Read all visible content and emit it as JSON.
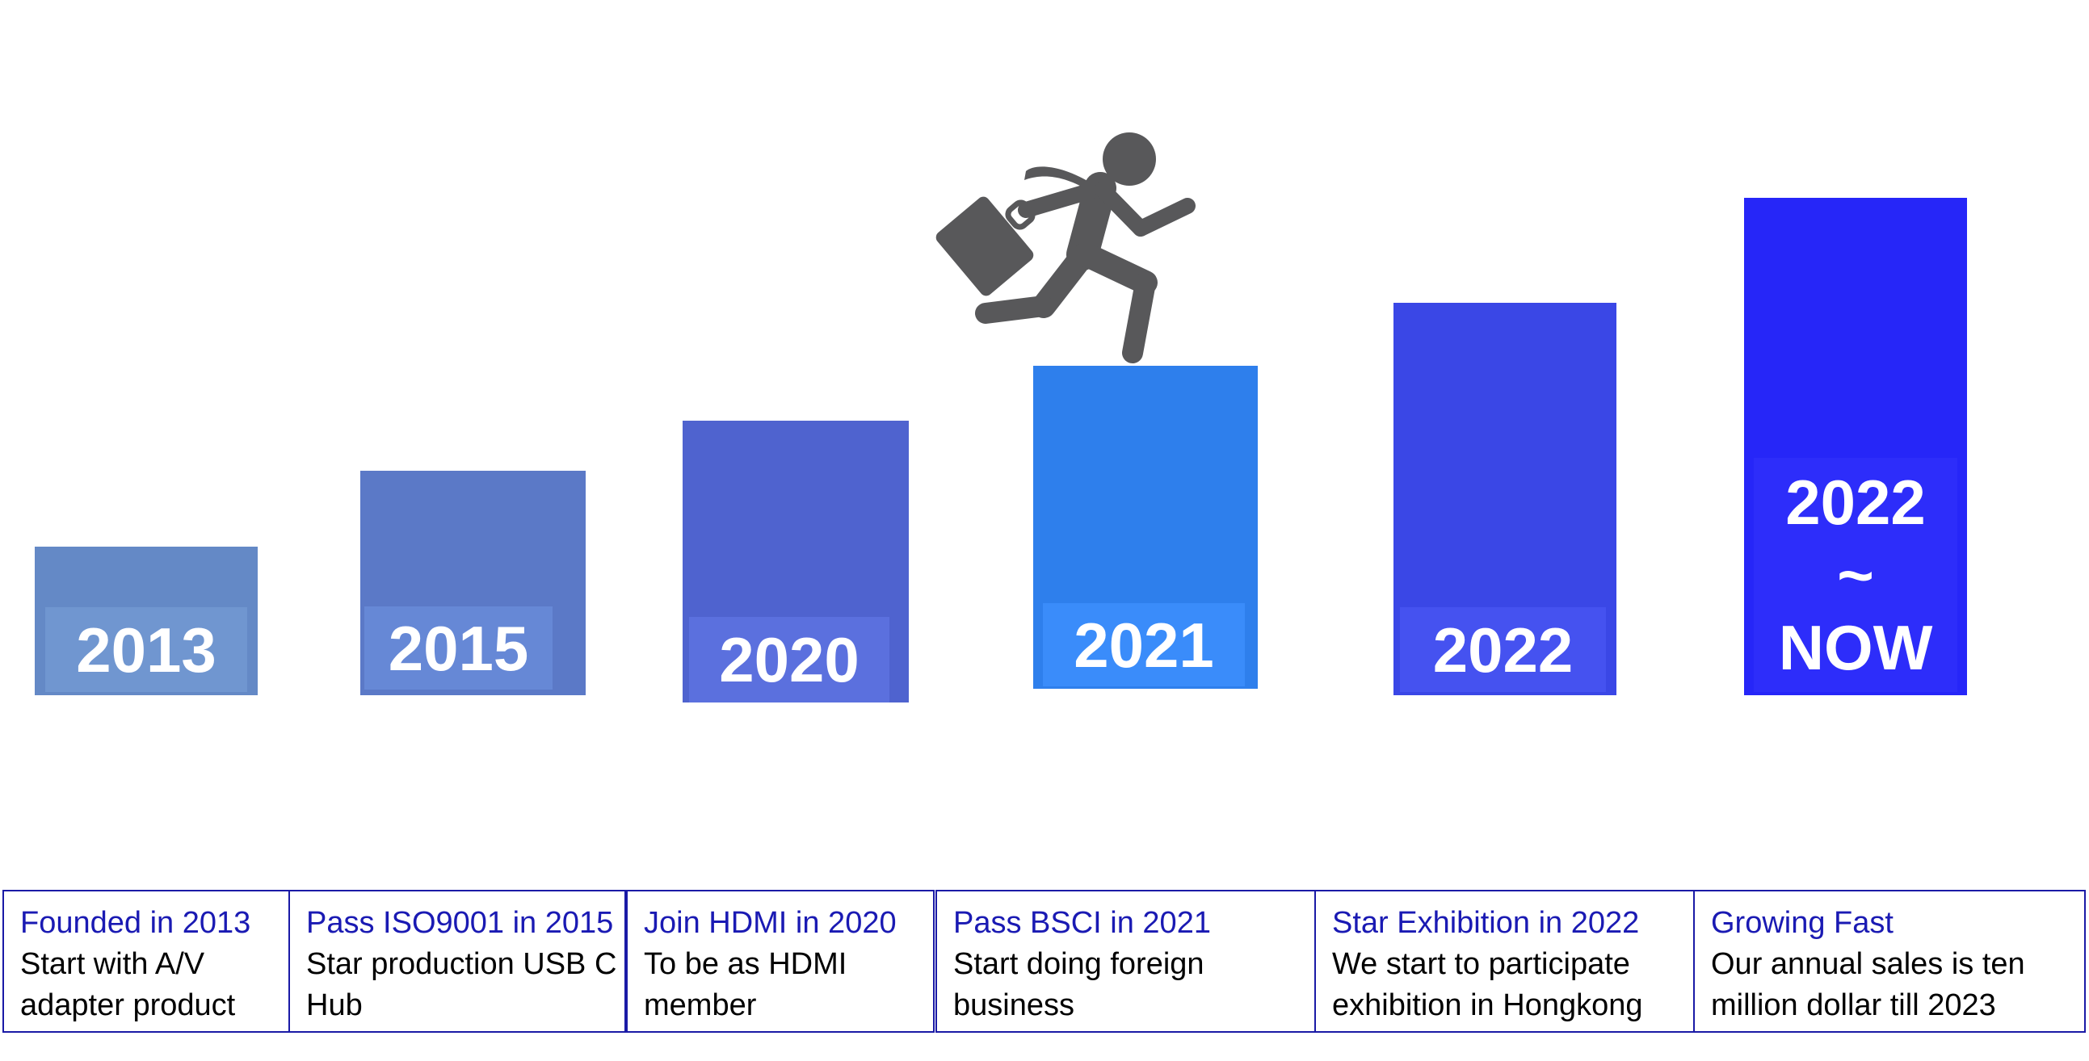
{
  "timeline": [
    {
      "label": "2013",
      "card_title": "Founded in 2013",
      "card_text": "Start with A/V adapter product",
      "color": "#6489c6",
      "label_bg": "#7096d0"
    },
    {
      "label": "2015",
      "card_title": "Pass ISO9001 in 2015",
      "card_text": "Star production USB C Hub",
      "color": "#5b79c7",
      "label_bg": "#6688d6"
    },
    {
      "label": "2020",
      "card_title": "Join HDMI in 2020",
      "card_text": "To be as HDMI member",
      "color": "#4f63cf",
      "label_bg": "#5b70de"
    },
    {
      "label": "2021",
      "card_title": "Pass BSCI in 2021",
      "card_text": "Start doing foreign business",
      "color": "#2e7fec",
      "label_bg": "#3a8cfa"
    },
    {
      "label": "2022",
      "card_title": "Star Exhibition in 2022",
      "card_text": "We start to participate exhibition in Hongkong",
      "color": "#3a47e6",
      "label_bg": "#4552f0"
    },
    {
      "label_lines": [
        "2022",
        "~",
        "NOW"
      ],
      "card_title": "Growing Fast",
      "card_text": "Our annual sales is ten million dollar till 2023",
      "color": "#2626f8",
      "label_bg": "#2d2dfa"
    }
  ],
  "icon": "businessman-running-with-briefcase-icon",
  "colors": {
    "card_border": "#1a1aa6",
    "card_title": "#1a1ab3",
    "icon": "#58585a"
  }
}
